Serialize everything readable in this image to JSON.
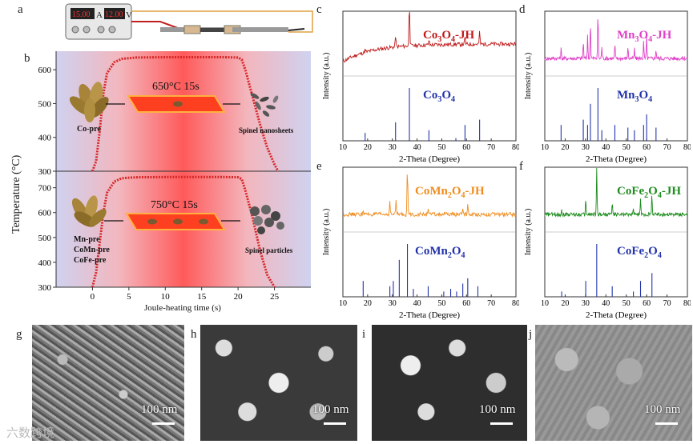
{
  "panels": {
    "a": "a",
    "b": "b",
    "c": "c",
    "d": "d",
    "e": "e",
    "f": "f",
    "g": "g",
    "h": "h",
    "i": "i",
    "j": "j"
  },
  "power_supply": {
    "current_display": "15.00",
    "current_unit": "A",
    "voltage_display": "12.00",
    "voltage_unit": "V"
  },
  "colors": {
    "red": "#d62728",
    "co3o4": "#c01a1a",
    "mn3o4": "#e040c8",
    "comn2o4": "#f08c1e",
    "cofe2o4": "#1e8c1e",
    "ref": "#2233aa",
    "hot": "#ff3a3a"
  },
  "heating": {
    "top": {
      "label": "650°C  15s",
      "precursor": "Co-pre",
      "product": "Spinel  nanosheets",
      "y_ticks": [
        "300",
        "400",
        "500",
        "600"
      ]
    },
    "bottom": {
      "label": "750°C  15s",
      "precursors": [
        "Mn-pre",
        "CoMn-pre",
        "CoFe-pre"
      ],
      "product": "Spinel  particles",
      "y_ticks": [
        "300",
        "400",
        "500",
        "600",
        "700"
      ]
    },
    "ylabel": "Temperature (°C)",
    "xlabel": "Joule-heating time (s)",
    "x_ticks": [
      "0",
      "5",
      "10",
      "15",
      "20",
      "25"
    ]
  },
  "xrd_common": {
    "xlabel": "2-Theta (Degree)",
    "ylabel": "Intensity (a.u.)",
    "x_ticks": [
      "10",
      "20",
      "30",
      "40",
      "50",
      "60",
      "70",
      "80"
    ]
  },
  "xrd_titles": {
    "c": {
      "jh": [
        "Co",
        "3",
        "O",
        "4",
        "-JH"
      ],
      "ref": [
        "Co",
        "3",
        "O",
        "4",
        ""
      ]
    },
    "d": {
      "jh": [
        "Mn",
        "3",
        "O",
        "4",
        "-JH"
      ],
      "ref": [
        "Mn",
        "3",
        "O",
        "4",
        ""
      ]
    },
    "e": {
      "jh": [
        "CoMn",
        "2",
        "O",
        "4",
        "-JH"
      ],
      "ref": [
        "CoMn",
        "2",
        "O",
        "4",
        ""
      ]
    },
    "f": {
      "jh": [
        "CoFe",
        "2",
        "O",
        "4",
        "-JH"
      ],
      "ref": [
        "CoFe",
        "2",
        "O",
        "4",
        ""
      ]
    }
  },
  "sem": {
    "scale": "100 nm"
  },
  "watermark": "六数跨境",
  "chart_data": [
    {
      "type": "line",
      "id": "b-top",
      "xlabel": "Joule-heating time (s)",
      "ylabel": "Temperature (°C)",
      "xlim": [
        -5,
        30
      ],
      "ylim": [
        300,
        650
      ],
      "x": [
        0,
        0.5,
        1,
        1.5,
        2,
        3,
        4,
        6,
        10,
        15,
        18,
        20,
        20.5,
        21,
        22,
        23,
        24,
        25,
        25.5
      ],
      "y": [
        300,
        330,
        420,
        530,
        590,
        622,
        632,
        636,
        637,
        637,
        637,
        636,
        630,
        600,
        520,
        440,
        370,
        320,
        300
      ]
    },
    {
      "type": "line",
      "id": "b-bottom",
      "xlabel": "Joule-heating time (s)",
      "ylabel": "Temperature (°C)",
      "xlim": [
        -5,
        30
      ],
      "ylim": [
        300,
        760
      ],
      "x": [
        0,
        0.5,
        1,
        1.5,
        2,
        3,
        4,
        6,
        10,
        15,
        18,
        20,
        20.5,
        21,
        22,
        23,
        24,
        25
      ],
      "y": [
        300,
        360,
        480,
        600,
        680,
        725,
        738,
        742,
        743,
        743,
        743,
        742,
        735,
        690,
        580,
        450,
        350,
        300
      ]
    },
    {
      "type": "line",
      "id": "c",
      "series": [
        {
          "name": "Co3O4-JH",
          "peaks": [
            [
              19,
              0.05
            ],
            [
              31.3,
              0.25
            ],
            [
              36.9,
              1.0
            ],
            [
              44.8,
              0.1
            ],
            [
              59.4,
              0.15
            ],
            [
              65.3,
              0.25
            ]
          ]
        },
        {
          "name": "Co3O4",
          "peaks": [
            [
              19,
              0.15
            ],
            [
              31.3,
              0.35
            ],
            [
              36.9,
              1.0
            ],
            [
              44.8,
              0.2
            ],
            [
              55.7,
              0.05
            ],
            [
              59.4,
              0.3
            ],
            [
              65.3,
              0.4
            ]
          ]
        }
      ],
      "xlim": [
        10,
        80
      ]
    },
    {
      "type": "line",
      "id": "d",
      "series": [
        {
          "name": "Mn3O4-JH",
          "peaks": [
            [
              18,
              0.2
            ],
            [
              28.9,
              0.35
            ],
            [
              31,
              0.5
            ],
            [
              32.4,
              0.8
            ],
            [
              36.1,
              1.0
            ],
            [
              38,
              0.25
            ],
            [
              44.4,
              0.3
            ],
            [
              50.8,
              0.25
            ],
            [
              54,
              0.2
            ],
            [
              58.5,
              0.35
            ],
            [
              60,
              0.45
            ],
            [
              64.6,
              0.2
            ]
          ]
        },
        {
          "name": "Mn3O4",
          "peaks": [
            [
              18,
              0.3
            ],
            [
              28.9,
              0.4
            ],
            [
              31,
              0.3
            ],
            [
              32.4,
              0.7
            ],
            [
              36.1,
              1.0
            ],
            [
              38,
              0.2
            ],
            [
              44.4,
              0.3
            ],
            [
              50.8,
              0.25
            ],
            [
              54,
              0.2
            ],
            [
              58.5,
              0.3
            ],
            [
              60,
              0.5
            ],
            [
              64.6,
              0.25
            ]
          ]
        }
      ],
      "xlim": [
        10,
        80
      ]
    },
    {
      "type": "line",
      "id": "e",
      "series": [
        {
          "name": "CoMn2O4-JH",
          "peaks": [
            [
              18.2,
              0.1
            ],
            [
              29,
              0.3
            ],
            [
              31.5,
              0.3
            ],
            [
              36.1,
              1.0
            ],
            [
              44.5,
              0.15
            ],
            [
              58.5,
              0.15
            ],
            [
              60.5,
              0.2
            ]
          ]
        },
        {
          "name": "CoMn2O4",
          "peaks": [
            [
              18.2,
              0.3
            ],
            [
              29,
              0.2
            ],
            [
              30.4,
              0.3
            ],
            [
              32.8,
              0.7
            ],
            [
              36.1,
              1.0
            ],
            [
              38.5,
              0.15
            ],
            [
              44.5,
              0.2
            ],
            [
              50.8,
              0.1
            ],
            [
              53.6,
              0.15
            ],
            [
              56,
              0.1
            ],
            [
              58.5,
              0.25
            ],
            [
              60.5,
              0.35
            ],
            [
              64.6,
              0.2
            ]
          ]
        }
      ],
      "xlim": [
        10,
        80
      ]
    },
    {
      "type": "line",
      "id": "f",
      "series": [
        {
          "name": "CoFe2O4-JH",
          "peaks": [
            [
              18.3,
              0.1
            ],
            [
              30.1,
              0.3
            ],
            [
              35.5,
              1.0
            ],
            [
              43.1,
              0.25
            ],
            [
              53.5,
              0.1
            ],
            [
              57,
              0.3
            ],
            [
              62.6,
              0.45
            ]
          ]
        },
        {
          "name": "CoFe2O4",
          "peaks": [
            [
              18.3,
              0.1
            ],
            [
              30.1,
              0.3
            ],
            [
              35.5,
              1.0
            ],
            [
              43.1,
              0.2
            ],
            [
              53.5,
              0.1
            ],
            [
              57,
              0.3
            ],
            [
              62.6,
              0.45
            ]
          ]
        }
      ],
      "xlim": [
        10,
        80
      ]
    }
  ]
}
